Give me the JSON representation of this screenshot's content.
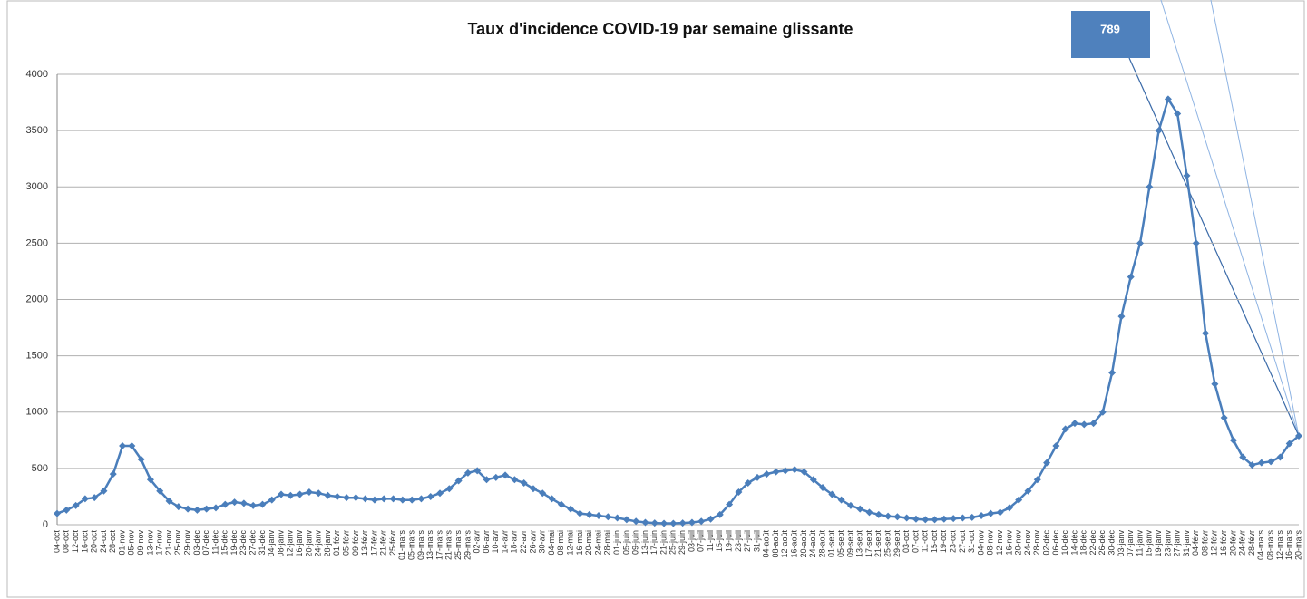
{
  "chart_data": {
    "type": "line",
    "title": "Taux d'incidence COVID-19 par semaine glissante",
    "annotation": "789",
    "categories": [
      "04-oct",
      "08-oct",
      "12-oct",
      "16-oct",
      "20-oct",
      "24-oct",
      "28-oct",
      "01-nov",
      "05-nov",
      "09-nov",
      "13-nov",
      "17-nov",
      "21-nov",
      "25-nov",
      "29-nov",
      "03-déc",
      "07-déc",
      "11-déc",
      "15-déc",
      "19-déc",
      "23-déc",
      "27-déc",
      "31-déc",
      "04-janv",
      "08-janv",
      "12-janv",
      "16-janv",
      "20-janv",
      "24-janv",
      "28-janv",
      "01-févr",
      "05-févr",
      "09-févr",
      "13-févr",
      "17-févr",
      "21-févr",
      "25-févr",
      "01-mars",
      "05-mars",
      "09-mars",
      "13-mars",
      "17-mars",
      "21-mars",
      "25-mars",
      "29-mars",
      "02-avr",
      "06-avr",
      "10-avr",
      "14-avr",
      "18-avr",
      "22-avr",
      "26-avr",
      "30-avr",
      "04-mai",
      "08-mai",
      "12-mai",
      "16-mai",
      "20-mai",
      "24-mai",
      "28-mai",
      "01-juin",
      "05-juin",
      "09-juin",
      "13-juin",
      "17-juin",
      "21-juin",
      "25-juin",
      "29-juin",
      "03-juil",
      "07-juil",
      "11-juil",
      "15-juil",
      "19-juil",
      "23-juil",
      "27-juil",
      "31-juil",
      "04-août",
      "08-août",
      "12-août",
      "16-août",
      "20-août",
      "24-août",
      "28-août",
      "01-sept",
      "05-sept",
      "09-sept",
      "13-sept",
      "17-sept",
      "21-sept",
      "25-sept",
      "29-sept",
      "03-oct",
      "07-oct",
      "11-oct",
      "15-oct",
      "19-oct",
      "23-oct",
      "27-oct",
      "31-oct",
      "04-nov",
      "08-nov",
      "12-nov",
      "16-nov",
      "20-nov",
      "24-nov",
      "28-nov",
      "02-déc",
      "06-déc",
      "10-déc",
      "14-déc",
      "18-déc",
      "22-déc",
      "26-déc",
      "30-déc",
      "03-janv",
      "07-janv",
      "11-janv",
      "15-janv",
      "19-janv",
      "23-janv",
      "27-janv",
      "31-janv",
      "04-févr",
      "08-févr",
      "12-févr",
      "16-févr",
      "20-févr",
      "24-févr",
      "28-févr",
      "04-mars",
      "08-mars",
      "12-mars",
      "16-mars",
      "20-mars"
    ],
    "series": [
      {
        "color": "#4a7ebb",
        "values": [
          100,
          130,
          170,
          230,
          240,
          300,
          450,
          700,
          700,
          580,
          400,
          300,
          210,
          160,
          140,
          130,
          140,
          150,
          180,
          200,
          190,
          170,
          180,
          220,
          270,
          260,
          270,
          290,
          280,
          260,
          250,
          240,
          240,
          230,
          220,
          230,
          230,
          220,
          220,
          230,
          250,
          280,
          320,
          390,
          460,
          480,
          400,
          420,
          440,
          400,
          370,
          320,
          280,
          230,
          180,
          140,
          100,
          90,
          80,
          70,
          60,
          45,
          30,
          20,
          15,
          12,
          12,
          15,
          20,
          30,
          50,
          90,
          180,
          290,
          370,
          420,
          450,
          470,
          480,
          490,
          470,
          400,
          330,
          270,
          220,
          170,
          140,
          110,
          90,
          75,
          70,
          60,
          50,
          45,
          45,
          50,
          55,
          60,
          65,
          80,
          100,
          110,
          150,
          220,
          300,
          400,
          550,
          700,
          850,
          900,
          890,
          900,
          1000,
          1350,
          1850,
          2200,
          2500,
          3000,
          3500,
          3780,
          3650,
          3100,
          2500,
          1700,
          1250,
          950,
          750,
          600,
          530,
          550,
          560,
          600,
          720,
          789
        ]
      }
    ],
    "ylim": [
      0,
      4000
    ],
    "yticks": [
      0,
      500,
      1000,
      1500,
      2000,
      2500,
      3000,
      3500,
      4000
    ],
    "grid": true
  }
}
